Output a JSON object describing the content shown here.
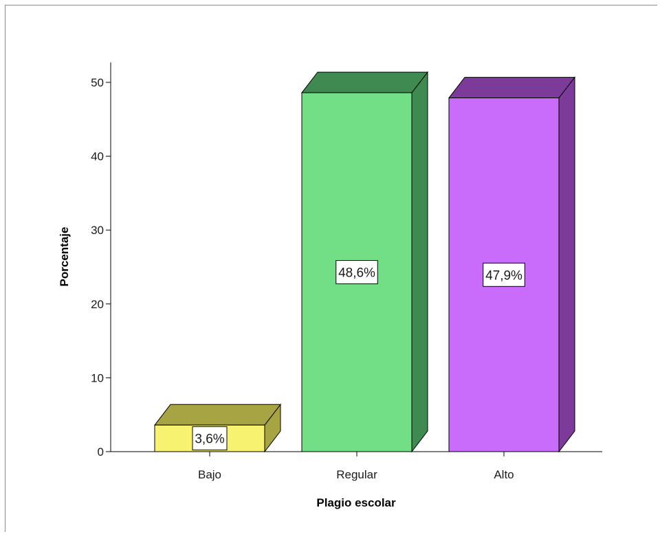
{
  "chart_data": {
    "type": "bar",
    "categories": [
      "Bajo",
      "Regular",
      "Alto"
    ],
    "values": [
      3.6,
      48.6,
      47.9
    ],
    "data_labels": [
      "3,6%",
      "48,6%",
      "47,9%"
    ],
    "xlabel": "Plagio escolar",
    "ylabel": "Porcentaje",
    "ylim": [
      0,
      50
    ],
    "yticks": [
      "0",
      "10",
      "20",
      "30",
      "40",
      "50"
    ],
    "ytick_values": [
      0,
      10,
      20,
      30,
      40,
      50
    ],
    "style": "3d-bar",
    "grid": false,
    "colors": [
      {
        "front": "#f7f270",
        "top": "#a7a444",
        "side": "#a7a444"
      },
      {
        "front": "#72df87",
        "top": "#3e8a51",
        "side": "#3e8a51"
      },
      {
        "front": "#c96bfb",
        "top": "#7c3b99",
        "side": "#7c3b99"
      }
    ]
  }
}
